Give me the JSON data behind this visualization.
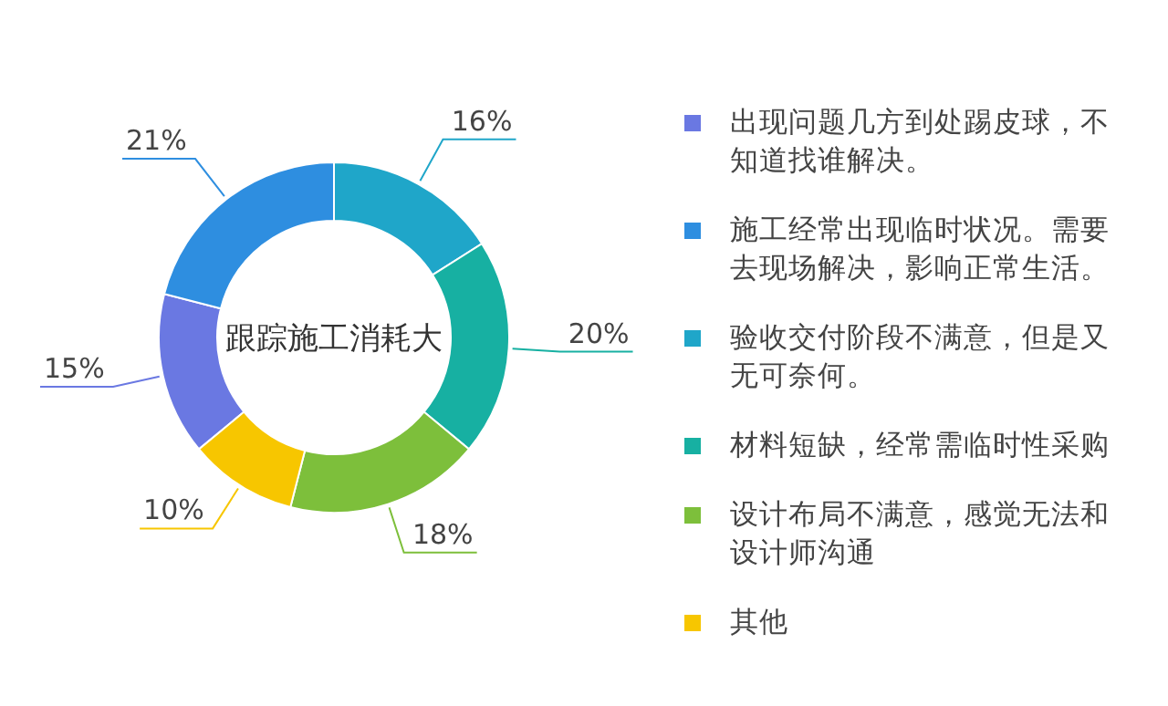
{
  "chart_data": {
    "type": "donut",
    "title": "跟踪施工消耗大",
    "categories": [
      "出现问题几方到处踢皮球，不知道找谁解决。",
      "施工经常出现临时状况。需要去现场解决，影响正常生活。",
      "验收交付阶段不满意，但是又无可奈何。",
      "材料短缺，经常需临时性采购",
      "设计布局不满意，感觉无法和设计师沟通",
      "其他"
    ],
    "values": [
      15,
      21,
      16,
      20,
      18,
      10
    ],
    "colors": [
      "#6a78e2",
      "#2e8ee0",
      "#1fa6c9",
      "#17b0a2",
      "#7dbf3b",
      "#f7c600"
    ],
    "value_labels": [
      "15%",
      "21%",
      "16%",
      "20%",
      "18%",
      "10%"
    ],
    "legend": "right"
  }
}
